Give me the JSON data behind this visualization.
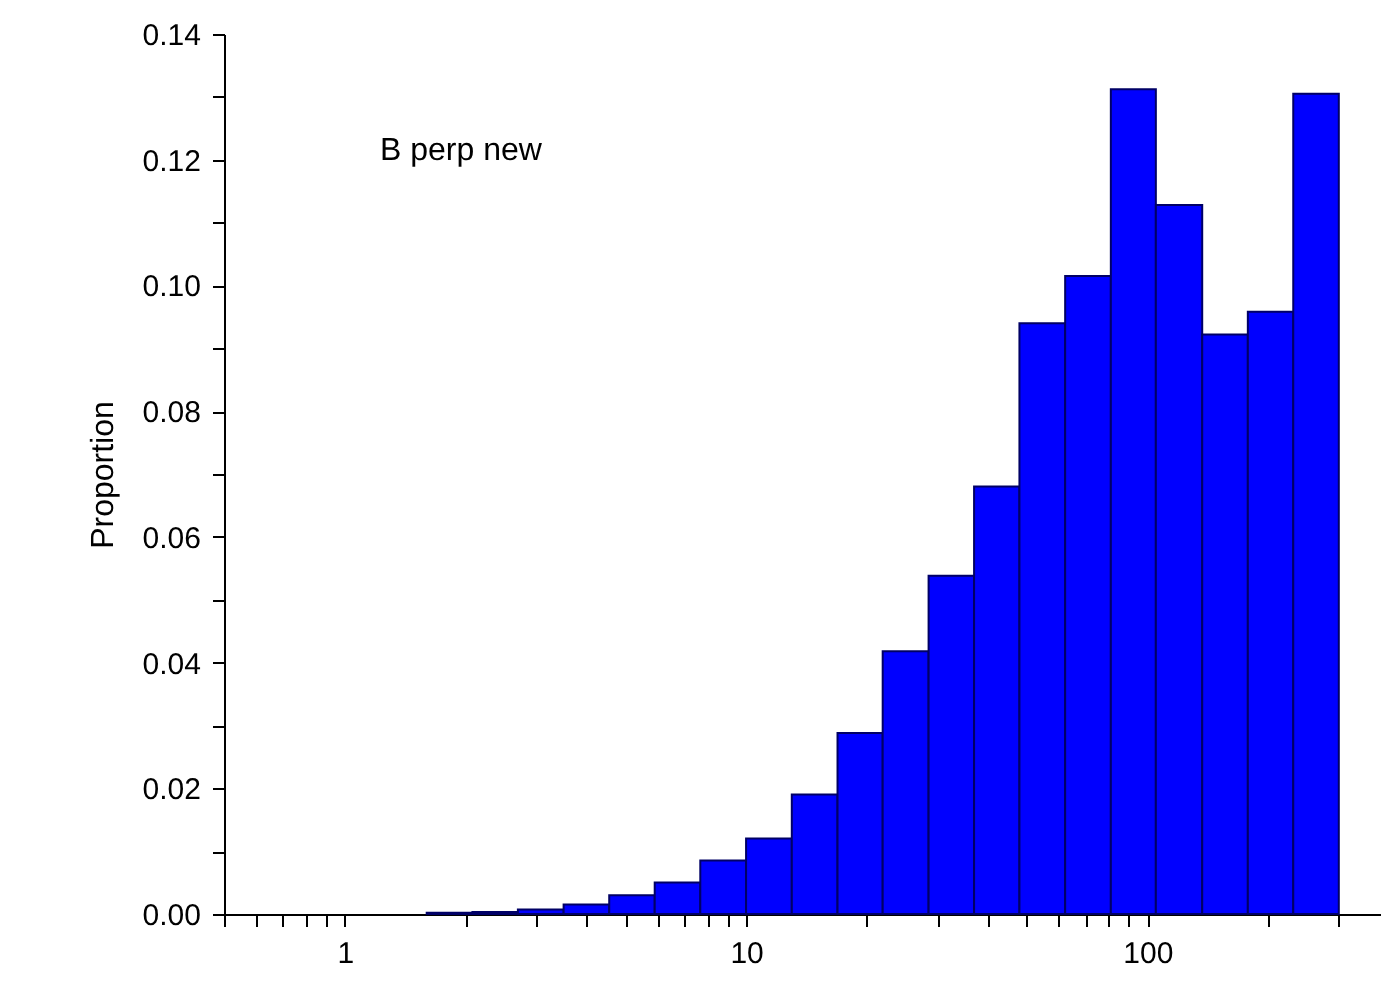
{
  "chart_data": {
    "type": "histogram",
    "ylabel": "Proportion",
    "annotations": [
      "B perp new"
    ],
    "color": "#0000ff",
    "log": "x",
    "bins": [
      1.6,
      2.08,
      2.7,
      3.51,
      4.56,
      5.92,
      7.69,
      10.0,
      13.0,
      16.9,
      21.9,
      28.5,
      37.0,
      48.0,
      62.4,
      81.1,
      105,
      137,
      178,
      231,
      300
    ],
    "values": [
      0.0002,
      0.0003,
      0.0007,
      0.0015,
      0.003,
      0.005,
      0.0085,
      0.012,
      0.019,
      0.0288,
      0.0418,
      0.0538,
      0.068,
      0.094,
      0.1015,
      0.1312,
      0.1128,
      0.0922,
      0.0958,
      0.1305
    ],
    "xlim": [
      0.5,
      380
    ],
    "ylim": [
      0,
      0.14
    ],
    "xticks": [
      {
        "value": 0.5,
        "label": null
      },
      {
        "value": 0.6,
        "label": null
      },
      {
        "value": 0.7,
        "label": null
      },
      {
        "value": 0.8,
        "label": null
      },
      {
        "value": 0.9,
        "label": null
      },
      1,
      {
        "value": 2,
        "label": null
      },
      {
        "value": 3,
        "label": null
      },
      {
        "value": 4,
        "label": null
      },
      {
        "value": 5,
        "label": null
      },
      {
        "value": 6,
        "label": null
      },
      {
        "value": 7,
        "label": null
      },
      {
        "value": 8,
        "label": null
      },
      {
        "value": 9,
        "label": null
      },
      10,
      {
        "value": 20,
        "label": null
      },
      {
        "value": 30,
        "label": null
      },
      {
        "value": 40,
        "label": null
      },
      {
        "value": 50,
        "label": null
      },
      {
        "value": 60,
        "label": null
      },
      {
        "value": 70,
        "label": null
      },
      {
        "value": 80,
        "label": null
      },
      {
        "value": 90,
        "label": null
      },
      100,
      {
        "value": 200,
        "label": null
      },
      {
        "value": 300,
        "label": null
      }
    ],
    "yticks": [
      {
        "value": 0,
        "label": "0.00"
      },
      {
        "value": 0.01,
        "label": null
      },
      {
        "value": 0.02,
        "label": "0.02"
      },
      {
        "value": 0.03,
        "label": null
      },
      {
        "value": 0.04,
        "label": "0.04"
      },
      {
        "value": 0.05,
        "label": null
      },
      {
        "value": 0.06,
        "label": "0.06"
      },
      {
        "value": 0.07,
        "label": null
      },
      {
        "value": 0.08,
        "label": "0.08"
      },
      {
        "value": 0.09,
        "label": null
      },
      {
        "value": 0.1,
        "label": "0.10"
      },
      {
        "value": 0.11,
        "label": null
      },
      {
        "value": 0.12,
        "label": "0.12"
      },
      {
        "value": 0.13,
        "label": null
      },
      {
        "value": 0.14,
        "label": "0.14"
      }
    ],
    "grid": false
  }
}
